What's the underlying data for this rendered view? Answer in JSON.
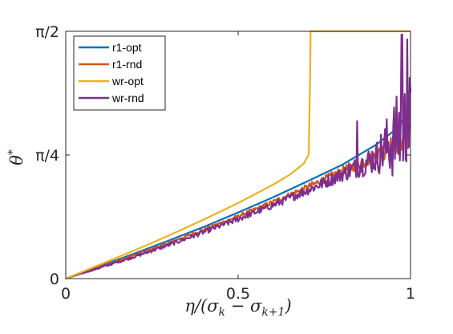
{
  "chart_data": {
    "type": "line",
    "xlabel": "η/(σ_k − σ_k+1)",
    "ylabel": "θ*",
    "xlim": [
      0,
      1
    ],
    "ylim": [
      0,
      1.5708
    ],
    "x_ticks": [
      {
        "value": 0,
        "label": "0"
      },
      {
        "value": 0.5,
        "label": "0.5"
      },
      {
        "value": 1,
        "label": "1"
      }
    ],
    "y_ticks": [
      {
        "value": 0,
        "label": "0"
      },
      {
        "value": 0.7854,
        "label": "π/4"
      },
      {
        "value": 1.5708,
        "label": "π/2"
      }
    ],
    "grid": false,
    "legend_position": "top-left",
    "series": [
      {
        "name": "r1-opt",
        "color": "#0072BD",
        "x": [
          0,
          0.1,
          0.2,
          0.3,
          0.4,
          0.5,
          0.6,
          0.7,
          0.8,
          0.85,
          0.9,
          0.95,
          0.97,
          0.99,
          1.0
        ],
        "y": [
          0,
          0.08,
          0.16,
          0.243,
          0.328,
          0.42,
          0.515,
          0.617,
          0.721,
          0.785,
          0.85,
          0.935,
          0.985,
          1.04,
          1.06
        ]
      },
      {
        "name": "r1-rnd",
        "color": "#D95319",
        "x": [
          0,
          0.1,
          0.2,
          0.3,
          0.4,
          0.5,
          0.6,
          0.7,
          0.8,
          0.9,
          0.95,
          1.0
        ],
        "y": [
          0,
          0.075,
          0.15,
          0.228,
          0.31,
          0.395,
          0.485,
          0.58,
          0.68,
          0.78,
          0.85,
          0.92
        ],
        "noise": [
          0,
          0.004,
          0.006,
          0.008,
          0.01,
          0.012,
          0.015,
          0.02,
          0.03,
          0.05,
          0.07,
          0.09
        ]
      },
      {
        "name": "wr-opt",
        "color": "#EDB120",
        "x": [
          0,
          0.1,
          0.2,
          0.3,
          0.4,
          0.5,
          0.6,
          0.65,
          0.69,
          0.705,
          0.706,
          0.709,
          0.71,
          1.0
        ],
        "y": [
          0,
          0.09,
          0.18,
          0.275,
          0.375,
          0.48,
          0.595,
          0.66,
          0.73,
          0.79,
          0.95,
          1.3,
          1.5708,
          1.5708
        ]
      },
      {
        "name": "wr-rnd",
        "color": "#7E2F8E",
        "x": [
          0,
          0.1,
          0.2,
          0.3,
          0.4,
          0.5,
          0.6,
          0.7,
          0.8,
          0.9,
          0.95,
          1.0
        ],
        "y": [
          0,
          0.07,
          0.14,
          0.215,
          0.295,
          0.378,
          0.465,
          0.56,
          0.66,
          0.77,
          0.88,
          0.98
        ],
        "noise": [
          0,
          0.006,
          0.009,
          0.012,
          0.015,
          0.018,
          0.022,
          0.03,
          0.045,
          0.1,
          0.25,
          0.35
        ],
        "spikes": [
          {
            "x": 0.845,
            "y": 1.0
          },
          {
            "x": 0.975,
            "y": 1.55
          },
          {
            "x": 0.99,
            "y": 1.52
          }
        ]
      }
    ]
  }
}
